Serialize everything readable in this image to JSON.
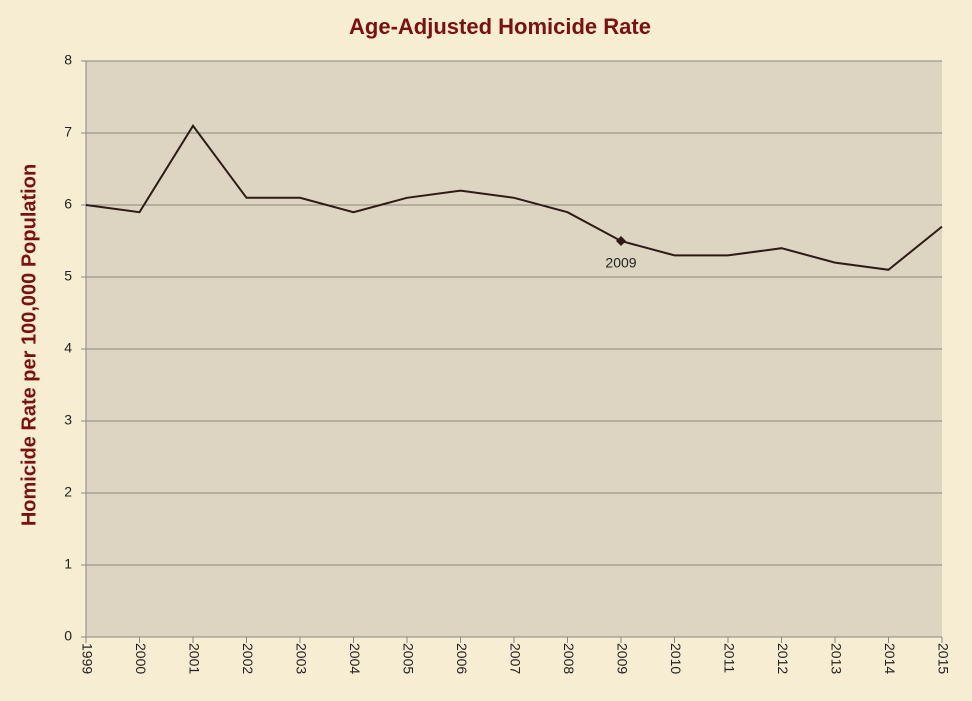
{
  "chart_data": {
    "type": "line",
    "title": "Age-Adjusted Homicide Rate",
    "y_label": "Homicide Rate per 100,000 Population",
    "categories": [
      "1999",
      "2000",
      "2001",
      "2002",
      "2003",
      "2004",
      "2005",
      "2006",
      "2007",
      "2008",
      "2009",
      "2010",
      "2011",
      "2012",
      "2013",
      "2014",
      "2015"
    ],
    "series": [
      {
        "name": "Homicide Rate",
        "color": "#2e1a17",
        "values": [
          6.0,
          5.9,
          7.1,
          6.1,
          6.1,
          5.9,
          6.1,
          6.2,
          6.1,
          5.9,
          5.5,
          5.3,
          5.3,
          5.4,
          5.2,
          5.1,
          5.7
        ]
      }
    ],
    "annotations": [
      {
        "text": "2009"
      }
    ],
    "ylim": [
      0,
      8
    ],
    "yticks": [
      0,
      1,
      2,
      3,
      4,
      5,
      6,
      7,
      8
    ],
    "grid": true
  }
}
